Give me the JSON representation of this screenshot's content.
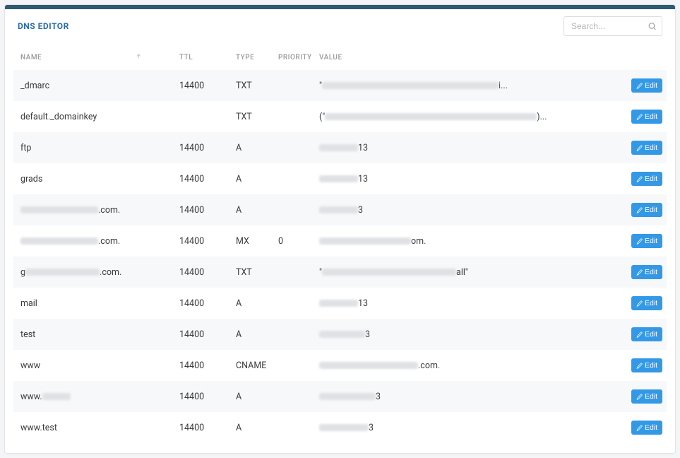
{
  "header": {
    "title": "DNS EDITOR",
    "search_placeholder": "Search..."
  },
  "table": {
    "columns": {
      "name": "NAME",
      "ttl": "TTL",
      "type": "TYPE",
      "priority": "PRIORITY",
      "value": "VALUE"
    },
    "edit_label": "Edit",
    "rows": [
      {
        "name_pre": "_dmarc",
        "blur_w": 0,
        "name_post": "",
        "ttl": "14400",
        "type": "TXT",
        "priority": "",
        "val_pre": "\"",
        "val_blur": 250,
        "val_post": "i..."
      },
      {
        "name_pre": "default._domainkey",
        "blur_w": 0,
        "name_post": "",
        "ttl": "",
        "type": "TXT",
        "priority": "",
        "val_pre": "(\"",
        "val_blur": 300,
        "val_post": ")..."
      },
      {
        "name_pre": "ftp",
        "blur_w": 0,
        "name_post": "",
        "ttl": "14400",
        "type": "A",
        "priority": "",
        "val_pre": "",
        "val_blur": 55,
        "val_post": "13"
      },
      {
        "name_pre": "grads",
        "blur_w": 0,
        "name_post": "",
        "ttl": "14400",
        "type": "A",
        "priority": "",
        "val_pre": "",
        "val_blur": 55,
        "val_post": "13"
      },
      {
        "name_pre": "",
        "blur_w": 110,
        "name_post": ".com.",
        "ttl": "14400",
        "type": "A",
        "priority": "",
        "val_pre": "",
        "val_blur": 55,
        "val_post": "3"
      },
      {
        "name_pre": "",
        "blur_w": 110,
        "name_post": ".com.",
        "ttl": "14400",
        "type": "MX",
        "priority": "0",
        "val_pre": "",
        "val_blur": 130,
        "val_post": "om."
      },
      {
        "name_pre": "g",
        "blur_w": 105,
        "name_post": ".com.",
        "ttl": "14400",
        "type": "TXT",
        "priority": "",
        "val_pre": "\"",
        "val_blur": 190,
        "val_post": "all\""
      },
      {
        "name_pre": "mail",
        "blur_w": 0,
        "name_post": "",
        "ttl": "14400",
        "type": "A",
        "priority": "",
        "val_pre": "",
        "val_blur": 55,
        "val_post": "13"
      },
      {
        "name_pre": "test",
        "blur_w": 0,
        "name_post": "",
        "ttl": "14400",
        "type": "A",
        "priority": "",
        "val_pre": "",
        "val_blur": 65,
        "val_post": "3"
      },
      {
        "name_pre": "www",
        "blur_w": 0,
        "name_post": "",
        "ttl": "14400",
        "type": "CNAME",
        "priority": "",
        "val_pre": "",
        "val_blur": 140,
        "val_post": ".com."
      },
      {
        "name_pre": "www.",
        "blur_w": 40,
        "name_post": "",
        "ttl": "14400",
        "type": "A",
        "priority": "",
        "val_pre": "",
        "val_blur": 80,
        "val_post": "3"
      },
      {
        "name_pre": "www.test",
        "blur_w": 0,
        "name_post": "",
        "ttl": "14400",
        "type": "A",
        "priority": "",
        "val_pre": "",
        "val_blur": 70,
        "val_post": "3"
      }
    ]
  },
  "colors": {
    "topbar": "#2d5b73",
    "title": "#2c6ca8",
    "edit_btn": "#3399e6",
    "row_alt": "#f7f8fa",
    "border": "#e5e5e5"
  }
}
